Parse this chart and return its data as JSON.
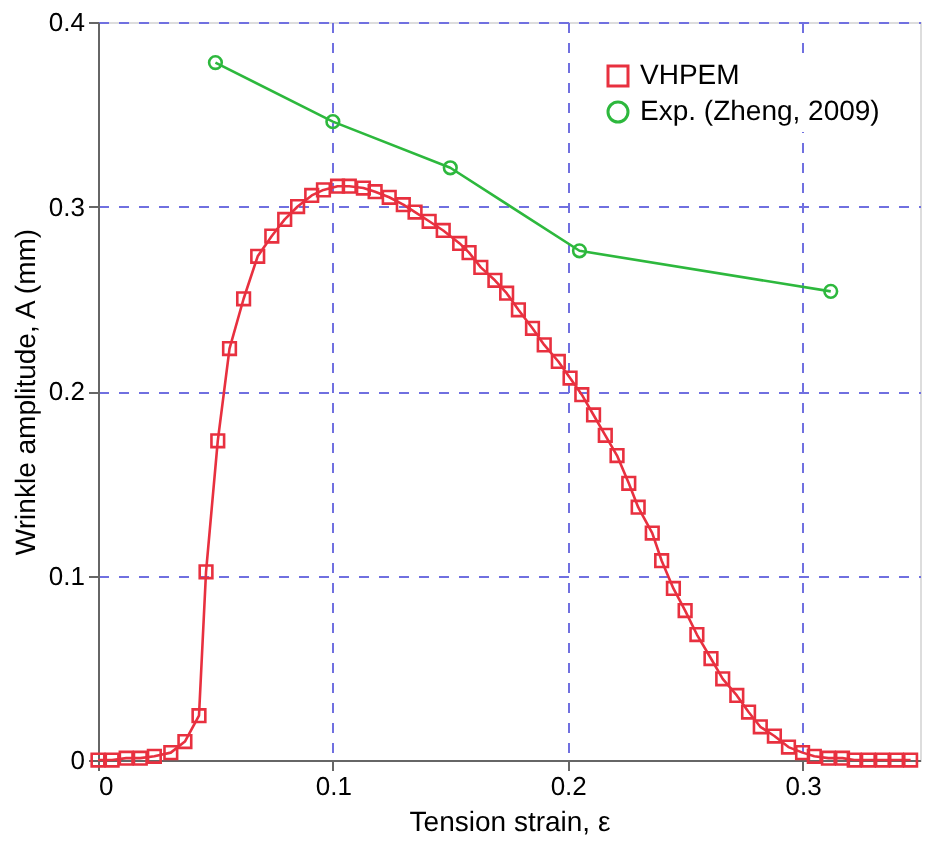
{
  "chart_data": {
    "type": "line",
    "xlabel": "Tension strain, ε",
    "ylabel": "Wrinkle amplitude, A (mm)",
    "xlim": [
      0,
      0.35
    ],
    "ylim": [
      0,
      0.4
    ],
    "xticks": [
      0,
      0.1,
      0.2,
      0.3
    ],
    "yticks": [
      0,
      0.1,
      0.2,
      0.3,
      0.4
    ],
    "grid": true,
    "legend": "top right",
    "line_style": "solid",
    "series": [
      {
        "name": "VHPEM",
        "color": "#e8303f",
        "marker": "square",
        "x": [
          0,
          0.006,
          0.012,
          0.018,
          0.024,
          0.031,
          0.037,
          0.043,
          0.046,
          0.051,
          0.056,
          0.062,
          0.068,
          0.074,
          0.0795,
          0.085,
          0.091,
          0.096,
          0.102,
          0.107,
          0.113,
          0.118,
          0.124,
          0.13,
          0.135,
          0.141,
          0.147,
          0.154,
          0.158,
          0.163,
          0.169,
          0.174,
          0.179,
          0.185,
          0.19,
          0.196,
          0.201,
          0.206,
          0.211,
          0.216,
          0.221,
          0.226,
          0.23,
          0.236,
          0.24,
          0.245,
          0.25,
          0.255,
          0.261,
          0.266,
          0.272,
          0.277,
          0.282,
          0.288,
          0.294,
          0.3,
          0.305,
          0.311,
          0.317,
          0.322,
          0.328,
          0.334,
          0.34,
          0.346
        ],
        "values": [
          0,
          0,
          0.001,
          0.001,
          0.002,
          0.004,
          0.01,
          0.024,
          0.102,
          0.173,
          0.223,
          0.25,
          0.273,
          0.284,
          0.293,
          0.3,
          0.306,
          0.309,
          0.311,
          0.311,
          0.31,
          0.308,
          0.305,
          0.301,
          0.297,
          0.292,
          0.287,
          0.28,
          0.275,
          0.267,
          0.26,
          0.253,
          0.244,
          0.234,
          0.225,
          0.216,
          0.207,
          0.198,
          0.187,
          0.176,
          0.165,
          0.15,
          0.137,
          0.123,
          0.108,
          0.093,
          0.081,
          0.068,
          0.055,
          0.044,
          0.035,
          0.026,
          0.018,
          0.013,
          0.007,
          0.004,
          0.002,
          0.001,
          0.001,
          0,
          0,
          0,
          0,
          0
        ]
      },
      {
        "name": "Exp. (Zheng, 2009)",
        "color": "#2db83d",
        "marker": "circle",
        "x": [
          0.05,
          0.1,
          0.15,
          0.205,
          0.312
        ],
        "values": [
          0.378,
          0.346,
          0.321,
          0.276,
          0.254
        ]
      }
    ]
  }
}
